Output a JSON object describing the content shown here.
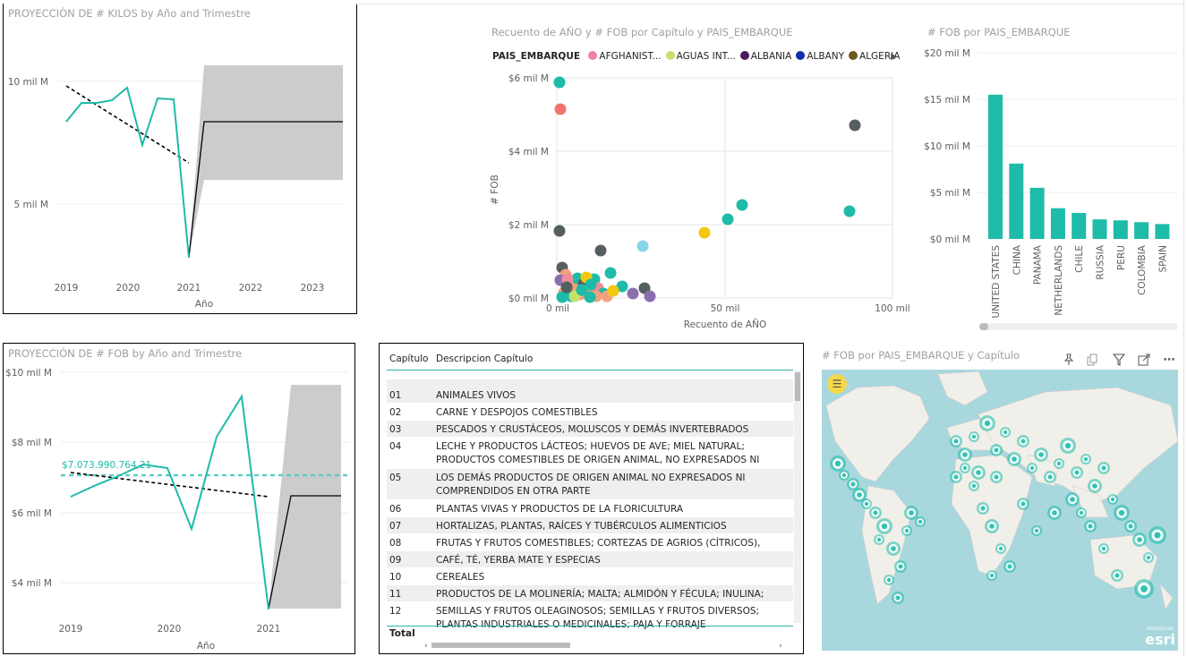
{
  "kilos_chart": {
    "title": "PROYECCIÓN DE # KILOS  by Año and Trimestre",
    "xlabel": "Año",
    "y_ticks": [
      "10 mil M",
      "5 mil M"
    ],
    "x_ticks": [
      "2019",
      "2020",
      "2021",
      "2022",
      "2023"
    ]
  },
  "fob_chart": {
    "title": "PROYECCIÓN DE # FOB by Año and Trimestre",
    "xlabel": "Año",
    "y_ticks": [
      "$10 mil M",
      "$8 mil M",
      "$6 mil M",
      "$4 mil M"
    ],
    "x_ticks": [
      "2019",
      "2020",
      "2021"
    ],
    "avg_label": "$7.073.990.764,21"
  },
  "scatter": {
    "title": "Recuento de AÑO y # FOB por Capítulo y PAIS_EMBARQUE",
    "legend_title": "PAIS_EMBARQUE",
    "legend": [
      {
        "name": "AFGHANIST...",
        "color": "#ee82a8"
      },
      {
        "name": "AGUAS INT...",
        "color": "#c7e06a"
      },
      {
        "name": "ALBANIA",
        "color": "#4a1c5e"
      },
      {
        "name": "ALBANY",
        "color": "#1030a8"
      },
      {
        "name": "ALGERIA",
        "color": "#6b5a18"
      }
    ],
    "xlabel": "Recuento de AÑO",
    "ylabel": "# FOB",
    "y_ticks": [
      "$6 mil M",
      "$4 mil M",
      "$2 mil M",
      "$0 mil M"
    ],
    "x_ticks": [
      "0 mil",
      "50 mil",
      "100 mil"
    ]
  },
  "bar": {
    "title": "# FOB por PAIS_EMBARQUE",
    "y_ticks": [
      "$20 mil M",
      "$15 mil M",
      "$10 mil M",
      "$5 mil M",
      "$0 mil M"
    ]
  },
  "chart_data": {
    "type": "bar",
    "title": "# FOB por PAIS_EMBARQUE",
    "categories": [
      "UNITED STATES",
      "CHINA",
      "PANAMA",
      "NETHERLANDS",
      "CHILE",
      "RUSSIA",
      "PERU",
      "COLOMBIA",
      "SPAIN"
    ],
    "values": [
      15.5,
      8.1,
      5.5,
      3.3,
      2.8,
      2.1,
      2.0,
      1.8,
      1.6
    ],
    "ylabel": "",
    "ylim": [
      0,
      20
    ],
    "unit": "mil M"
  },
  "table": {
    "col1": "Capítulo",
    "col2": "Descripcion Capítulo",
    "rows": [
      {
        "code": "01",
        "desc": "ANIMALES VIVOS"
      },
      {
        "code": "02",
        "desc": "CARNE Y DESPOJOS COMESTIBLES"
      },
      {
        "code": "03",
        "desc": "PESCADOS Y CRUSTÁCEOS, MOLUSCOS Y DEMÁS INVERTEBRADOS ACUÁTICOS"
      },
      {
        "code": "04",
        "desc": "LECHE Y PRODUCTOS LÁCTEOS; HUEVOS DE AVE; MIEL NATURAL; PRODUCTOS COMESTIBLES DE ORIGEN ANIMAL, NO EXPRESADOS NI COMPRENDIDOS EN OTRA PARTE"
      },
      {
        "code": "05",
        "desc": "LOS DEMÁS PRODUCTOS DE ORIGEN ANIMAL NO EXPRESADOS NI COMPRENDIDOS EN OTRA PARTE"
      },
      {
        "code": "06",
        "desc": "PLANTAS VIVAS Y PRODUCTOS DE LA FLORICULTURA"
      },
      {
        "code": "07",
        "desc": "HORTALIZAS, PLANTAS, RAÍCES Y TUBÉRCULOS ALIMENTICIOS"
      },
      {
        "code": "08",
        "desc": "FRUTAS Y FRUTOS COMESTIBLES; CORTEZAS DE AGRIOS (CÍTRICOS), MELONES O SANDÍAS"
      },
      {
        "code": "09",
        "desc": "CAFÉ, TÉ, YERBA MATE Y ESPECIAS"
      },
      {
        "code": "10",
        "desc": "CEREALES"
      },
      {
        "code": "11",
        "desc": "PRODUCTOS DE LA MOLINERÍA; MALTA; ALMIDÓN Y FÉCULA; INULINA; GLUTEN DE TRIGO"
      },
      {
        "code": "12",
        "desc": "SEMILLAS Y FRUTOS OLEAGINOSOS; SEMILLAS Y FRUTOS DIVERSOS; PLANTAS INDUSTRIALES O MEDICINALES; PAJA Y FORRAJE"
      }
    ],
    "total_label": "Total"
  },
  "map": {
    "title": "# FOB por PAIS_EMBARQUE y Capítulo",
    "logo_small": "POWERED BY",
    "logo": "esri",
    "icons": [
      "pin-icon",
      "copy-icon",
      "filter-icon",
      "focus-icon",
      "more-icon"
    ]
  },
  "colors": {
    "teal": "#1ebba8",
    "forecast_band": "#cccccc",
    "accent": "#2ab5a5"
  }
}
